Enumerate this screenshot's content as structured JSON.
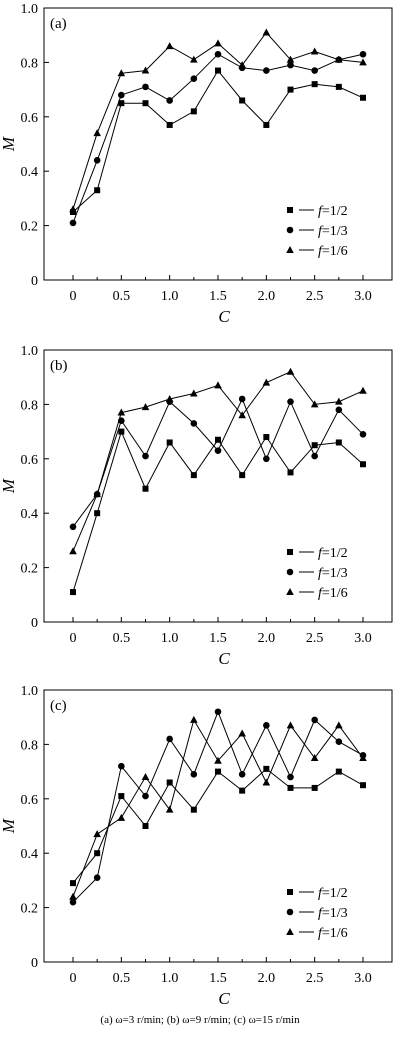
{
  "caption": "(a) ω=3 r/min; (b) ω=9 r/min; (c) ω=15 r/min",
  "chart_data": [
    {
      "type": "line",
      "panel_label": "(a)",
      "xlabel": "C",
      "ylabel": "M",
      "xlim": [
        -0.3,
        3.3
      ],
      "ylim": [
        0,
        1.0
      ],
      "xticks": [
        "0",
        "0.5",
        "1.0",
        "1.5",
        "2.0",
        "2.5",
        "3.0"
      ],
      "yticks": [
        "0",
        "0.2",
        "0.4",
        "0.6",
        "0.8",
        "1.0"
      ],
      "legend_position": "bottom-right",
      "x": [
        0,
        0.25,
        0.5,
        0.75,
        1.0,
        1.25,
        1.5,
        1.75,
        2.0,
        2.25,
        2.5,
        2.75,
        3.0
      ],
      "series": [
        {
          "name": "f=1/2",
          "marker": "square",
          "values": [
            0.25,
            0.33,
            0.65,
            0.65,
            0.57,
            0.62,
            0.77,
            0.66,
            0.57,
            0.7,
            0.72,
            0.71,
            0.67
          ]
        },
        {
          "name": "f=1/3",
          "marker": "circle",
          "values": [
            0.21,
            0.44,
            0.68,
            0.71,
            0.66,
            0.74,
            0.83,
            0.78,
            0.77,
            0.79,
            0.77,
            0.81,
            0.83
          ]
        },
        {
          "name": "f=1/6",
          "marker": "triangle",
          "values": [
            0.26,
            0.54,
            0.76,
            0.77,
            0.86,
            0.81,
            0.87,
            0.79,
            0.91,
            0.81,
            0.84,
            0.81,
            0.8
          ]
        }
      ]
    },
    {
      "type": "line",
      "panel_label": "(b)",
      "xlabel": "C",
      "ylabel": "M",
      "xlim": [
        -0.3,
        3.3
      ],
      "ylim": [
        0,
        1.0
      ],
      "xticks": [
        "0",
        "0.5",
        "1.0",
        "1.5",
        "2.0",
        "2.5",
        "3.0"
      ],
      "yticks": [
        "0",
        "0.2",
        "0.4",
        "0.6",
        "0.8",
        "1.0"
      ],
      "legend_position": "bottom-right",
      "x": [
        0,
        0.25,
        0.5,
        0.75,
        1.0,
        1.25,
        1.5,
        1.75,
        2.0,
        2.25,
        2.5,
        2.75,
        3.0
      ],
      "series": [
        {
          "name": "f=1/2",
          "marker": "square",
          "values": [
            0.11,
            0.4,
            0.7,
            0.49,
            0.66,
            0.54,
            0.67,
            0.54,
            0.68,
            0.55,
            0.65,
            0.66,
            0.58
          ]
        },
        {
          "name": "f=1/3",
          "marker": "circle",
          "values": [
            0.35,
            0.47,
            0.74,
            0.61,
            0.81,
            0.73,
            0.63,
            0.82,
            0.6,
            0.81,
            0.61,
            0.78,
            0.69
          ]
        },
        {
          "name": "f=1/6",
          "marker": "triangle",
          "values": [
            0.26,
            0.47,
            0.77,
            0.79,
            0.82,
            0.84,
            0.87,
            0.76,
            0.88,
            0.92,
            0.8,
            0.81,
            0.85
          ]
        }
      ]
    },
    {
      "type": "line",
      "panel_label": "(c)",
      "xlabel": "C",
      "ylabel": "M",
      "xlim": [
        -0.3,
        3.3
      ],
      "ylim": [
        0,
        1.0
      ],
      "xticks": [
        "0",
        "0.5",
        "1.0",
        "1.5",
        "2.0",
        "2.5",
        "3.0"
      ],
      "yticks": [
        "0",
        "0.2",
        "0.4",
        "0.6",
        "0.8",
        "1.0"
      ],
      "legend_position": "bottom-right",
      "x": [
        0,
        0.25,
        0.5,
        0.75,
        1.0,
        1.25,
        1.5,
        1.75,
        2.0,
        2.25,
        2.5,
        2.75,
        3.0
      ],
      "series": [
        {
          "name": "f=1/2",
          "marker": "square",
          "values": [
            0.29,
            0.4,
            0.61,
            0.5,
            0.66,
            0.56,
            0.7,
            0.63,
            0.71,
            0.64,
            0.64,
            0.7,
            0.65
          ]
        },
        {
          "name": "f=1/3",
          "marker": "circle",
          "values": [
            0.22,
            0.31,
            0.72,
            0.61,
            0.82,
            0.69,
            0.92,
            0.69,
            0.87,
            0.68,
            0.89,
            0.81,
            0.76
          ]
        },
        {
          "name": "f=1/6",
          "marker": "triangle",
          "values": [
            0.24,
            0.47,
            0.53,
            0.68,
            0.56,
            0.89,
            0.74,
            0.84,
            0.66,
            0.87,
            0.75,
            0.87,
            0.75
          ]
        }
      ]
    }
  ]
}
